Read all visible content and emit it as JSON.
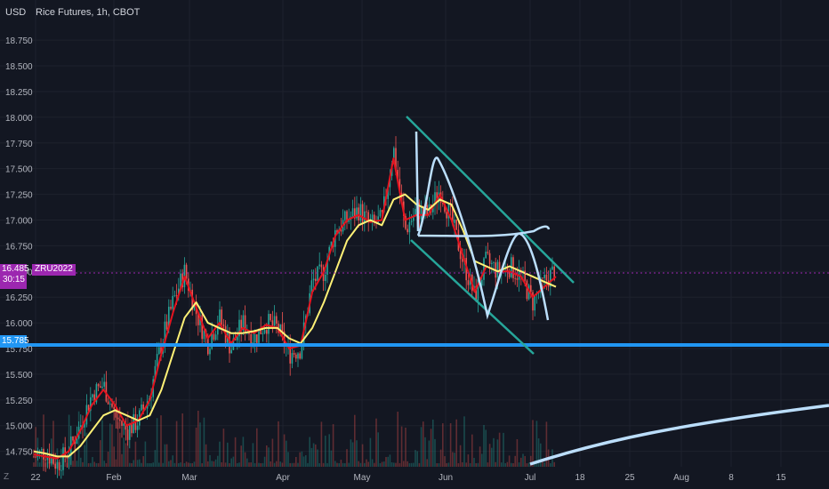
{
  "header": {
    "currency": "USD",
    "title": "Rice Futures, 1h, CBOT"
  },
  "badges": {
    "last_price": "16.485",
    "countdown": "30:15",
    "symbol": "ZRU2022",
    "level": "15.785"
  },
  "footer": {
    "z_icon": "Z"
  },
  "colors": {
    "background": "#131722",
    "grid": "#1e222d",
    "candle_up": "#26a69a",
    "candle_down": "#ef5350",
    "fast_ma": "#e5131f",
    "slow_ma": "#fff176",
    "channel": "#26a69a",
    "sketch": "#bbdefb",
    "support_line": "#2196f3",
    "price_line": "#9c27b0"
  },
  "chart_data": {
    "type": "candlestick",
    "y_ticks": [
      "18.750",
      "18.500",
      "18.250",
      "18.000",
      "17.750",
      "17.500",
      "17.250",
      "17.000",
      "16.750",
      "16.500",
      "16.250",
      "16.000",
      "15.750",
      "15.500",
      "15.250",
      "15.000",
      "14.750"
    ],
    "x_ticks": [
      "2022",
      "Feb",
      "Mar",
      "Apr",
      "May",
      "Jun",
      "Jul",
      "18",
      "25",
      "Aug",
      "8",
      "15"
    ],
    "ylim": [
      14.6,
      18.95
    ],
    "last_price": 16.485,
    "support_level": 15.785,
    "price_path": [
      {
        "x": "2022",
        "y": 14.7
      },
      {
        "x": "Jan 5",
        "y": 14.75
      },
      {
        "x": "Jan 10",
        "y": 14.62
      },
      {
        "x": "Jan 15",
        "y": 14.75
      },
      {
        "x": "Jan 22",
        "y": 15.0
      },
      {
        "x": "Jan 27",
        "y": 15.3
      },
      {
        "x": "Feb 1",
        "y": 15.4
      },
      {
        "x": "Feb 5",
        "y": 15.1
      },
      {
        "x": "Feb 10",
        "y": 14.95
      },
      {
        "x": "Feb 15",
        "y": 15.05
      },
      {
        "x": "Feb 20",
        "y": 15.3
      },
      {
        "x": "Feb 25",
        "y": 15.8
      },
      {
        "x": "Mar 1",
        "y": 16.2
      },
      {
        "x": "Mar 4",
        "y": 16.5
      },
      {
        "x": "Mar 8",
        "y": 16.1
      },
      {
        "x": "Mar 12",
        "y": 15.8
      },
      {
        "x": "Mar 16",
        "y": 16.05
      },
      {
        "x": "Mar 21",
        "y": 15.75
      },
      {
        "x": "Mar 25",
        "y": 16.0
      },
      {
        "x": "Mar 29",
        "y": 15.85
      },
      {
        "x": "Apr 3",
        "y": 16.0
      },
      {
        "x": "Apr 8",
        "y": 15.95
      },
      {
        "x": "Apr 12",
        "y": 15.7
      },
      {
        "x": "Apr 16",
        "y": 15.75
      },
      {
        "x": "Apr 20",
        "y": 16.4
      },
      {
        "x": "Apr 24",
        "y": 16.5
      },
      {
        "x": "Apr 28",
        "y": 16.9
      },
      {
        "x": "May 2",
        "y": 17.0
      },
      {
        "x": "May 6",
        "y": 17.1
      },
      {
        "x": "May 10",
        "y": 16.95
      },
      {
        "x": "May 15",
        "y": 17.0
      },
      {
        "x": "May 18",
        "y": 17.7
      },
      {
        "x": "May 21",
        "y": 16.9
      },
      {
        "x": "May 25",
        "y": 17.1
      },
      {
        "x": "May 29",
        "y": 17.05
      },
      {
        "x": "Jun 1",
        "y": 17.3
      },
      {
        "x": "Jun 5",
        "y": 17.0
      },
      {
        "x": "Jun 9",
        "y": 16.6
      },
      {
        "x": "Jun 13",
        "y": 16.25
      },
      {
        "x": "Jun 17",
        "y": 16.6
      },
      {
        "x": "Jun 21",
        "y": 16.5
      },
      {
        "x": "Jun 25",
        "y": 16.55
      },
      {
        "x": "Jun 29",
        "y": 16.45
      },
      {
        "x": "Jul 3",
        "y": 16.2
      },
      {
        "x": "Jul 6",
        "y": 16.4
      },
      {
        "x": "Jul 9",
        "y": 16.52
      }
    ],
    "series": [
      {
        "values": [
          14.72,
          14.7,
          14.68,
          14.75,
          14.95,
          15.2,
          15.35,
          15.2,
          15.0,
          15.05,
          15.25,
          15.7,
          16.1,
          16.45,
          16.15,
          15.85,
          16.0,
          15.8,
          15.95,
          15.9,
          15.98,
          15.95,
          15.75,
          15.78,
          16.3,
          16.5,
          16.85,
          17.0,
          17.05,
          16.98,
          17.0,
          17.6,
          17.0,
          17.05,
          17.05,
          17.25,
          17.0,
          16.65,
          16.3,
          16.55,
          16.5,
          16.5,
          16.45,
          16.25,
          16.35,
          16.45
        ]
      },
      {
        "values": [
          14.75,
          14.73,
          14.7,
          14.7,
          14.8,
          14.95,
          15.1,
          15.15,
          15.1,
          15.05,
          15.1,
          15.35,
          15.7,
          16.05,
          16.2,
          16.0,
          15.95,
          15.9,
          15.9,
          15.92,
          15.95,
          15.95,
          15.85,
          15.8,
          15.95,
          16.2,
          16.5,
          16.8,
          16.95,
          17.0,
          16.95,
          17.2,
          17.25,
          17.15,
          17.1,
          17.2,
          17.15,
          16.9,
          16.6,
          16.55,
          16.5,
          16.55,
          16.5,
          16.45,
          16.4,
          16.35
        ]
      }
    ]
  }
}
